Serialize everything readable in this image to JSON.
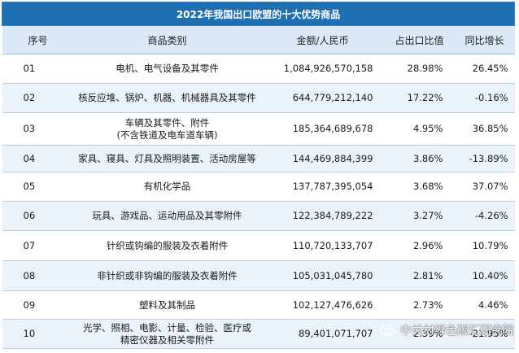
{
  "table": {
    "title": "2022年我国出口欧盟的十大优势商品",
    "headers": {
      "num": "序号",
      "category": "商品类别",
      "amount": "金额/人民币",
      "share": "占出口比值",
      "yoy": "同比增长"
    },
    "rows": [
      {
        "num": "01",
        "category": "电机、电气设备及其零件",
        "amount": "1,084,926,570,158",
        "share": "28.98%",
        "yoy": "26.45%"
      },
      {
        "num": "02",
        "category": "核反应堆、锅炉、机器、机械器具及其零件",
        "amount": "644,779,212,140",
        "share": "17.22%",
        "yoy": "-0.16%"
      },
      {
        "num": "03",
        "category": "车辆及其零件、附件\n(不含铁道及电车道车辆)",
        "amount": "185,364,689,678",
        "share": "4.95%",
        "yoy": "36.85%"
      },
      {
        "num": "04",
        "category": "家具、寝具、灯具及照明装置、活动房屋等",
        "amount": "144,469,884,399",
        "share": "3.86%",
        "yoy": "-13.89%"
      },
      {
        "num": "05",
        "category": "有机化学品",
        "amount": "137,787,395,054",
        "share": "3.68%",
        "yoy": "37.07%"
      },
      {
        "num": "06",
        "category": "玩具、游戏品、运动用品及其零附件",
        "amount": "122,384,789,222",
        "share": "3.27%",
        "yoy": "-4.26%"
      },
      {
        "num": "07",
        "category": "针织或钩编的服装及衣着附件",
        "amount": "110,720,133,707",
        "share": "2.96%",
        "yoy": "10.79%"
      },
      {
        "num": "08",
        "category": "非针织或非钩编的服装及衣着附件",
        "amount": "105,031,045,780",
        "share": "2.81%",
        "yoy": "10.40%"
      },
      {
        "num": "09",
        "category": "塑料及其制品",
        "amount": "102,127,476,626",
        "share": "2.73%",
        "yoy": "4.46%"
      },
      {
        "num": "10",
        "category": "光学、照相、电影、计量、检验、医疗或\n精密仪器及相关零附件",
        "amount": "89,401,071,707",
        "share": "2.39%",
        "yoy": "-21.95%"
      }
    ]
  },
  "watermark": {
    "icon": "wechat-icon",
    "text": "中关村绿色碳汇研究院"
  }
}
